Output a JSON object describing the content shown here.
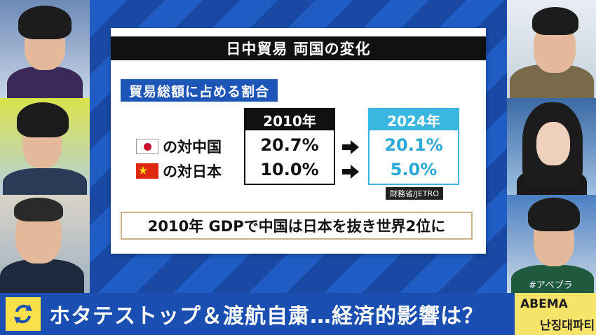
{
  "board": {
    "title": "日中貿易 両国の変化",
    "section_label": "貿易総額に占める割合",
    "columns": [
      "2010年",
      "2024年"
    ],
    "rows": [
      {
        "label": "の対中国",
        "flag": "japan-flag",
        "v2010": "20.7%",
        "v2024": "20.1%"
      },
      {
        "label": "の対日本",
        "flag": "china-flag",
        "v2010": "10.0%",
        "v2024": "5.0%"
      }
    ],
    "source": "財務省/JETRO",
    "note": "2010年 GDPで中国は日本を抜き世界2位に"
  },
  "ticker": {
    "text": "ホタテストップ＆渡航自粛…経済的影響は？",
    "icon": "refresh-icon"
  },
  "channel": {
    "logo": "ABEMA",
    "program": "난징대파티",
    "hashtag": "#アベプラ"
  },
  "colors": {
    "accent_blue": "#1e56b8",
    "highlight_cyan": "#3ab7e0",
    "ticker_bg": "#1a4eb0",
    "ticker_icon_bg": "#f7e04a"
  }
}
